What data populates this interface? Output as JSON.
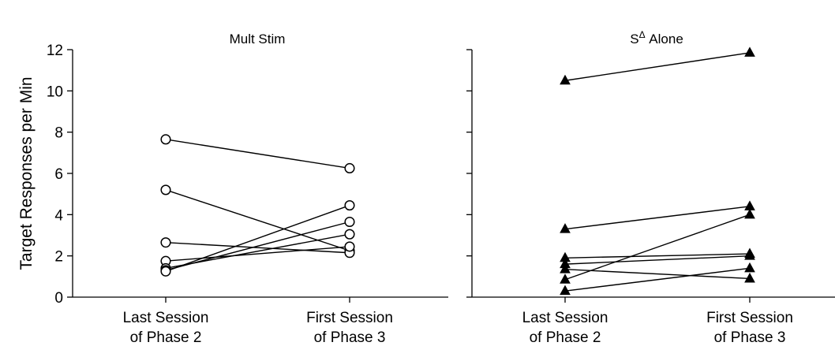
{
  "chart_data": [
    {
      "type": "line",
      "title": "Mult Stim",
      "ylabel": "Target Responses per Min",
      "ylim": [
        0,
        12
      ],
      "yticks": [
        "0",
        "2",
        "4",
        "6",
        "8",
        "10",
        "12"
      ],
      "categories": [
        [
          "Last Session",
          "of Phase 2"
        ],
        [
          "First Session",
          "of Phase 3"
        ]
      ],
      "marker": "open-circle",
      "series": [
        {
          "values": [
            7.65,
            6.25
          ]
        },
        {
          "values": [
            5.2,
            2.25
          ]
        },
        {
          "values": [
            2.65,
            2.15
          ]
        },
        {
          "values": [
            1.75,
            2.45
          ]
        },
        {
          "values": [
            1.4,
            3.05
          ]
        },
        {
          "values": [
            1.3,
            3.65
          ]
        },
        {
          "values": [
            1.25,
            4.45
          ]
        }
      ]
    },
    {
      "type": "line",
      "title": "S",
      "title_sup": "Δ",
      "title_rest": " Alone",
      "ylim": [
        0,
        12
      ],
      "categories": [
        [
          "Last Session",
          "of Phase 2"
        ],
        [
          "First Session",
          "of Phase 3"
        ]
      ],
      "marker": "filled-triangle",
      "series": [
        {
          "values": [
            10.5,
            11.85
          ]
        },
        {
          "values": [
            3.3,
            4.4
          ]
        },
        {
          "values": [
            1.9,
            2.1
          ]
        },
        {
          "values": [
            1.6,
            2.0
          ]
        },
        {
          "values": [
            1.35,
            0.9
          ]
        },
        {
          "values": [
            0.85,
            4.0
          ]
        },
        {
          "values": [
            0.3,
            1.4
          ]
        }
      ]
    }
  ]
}
